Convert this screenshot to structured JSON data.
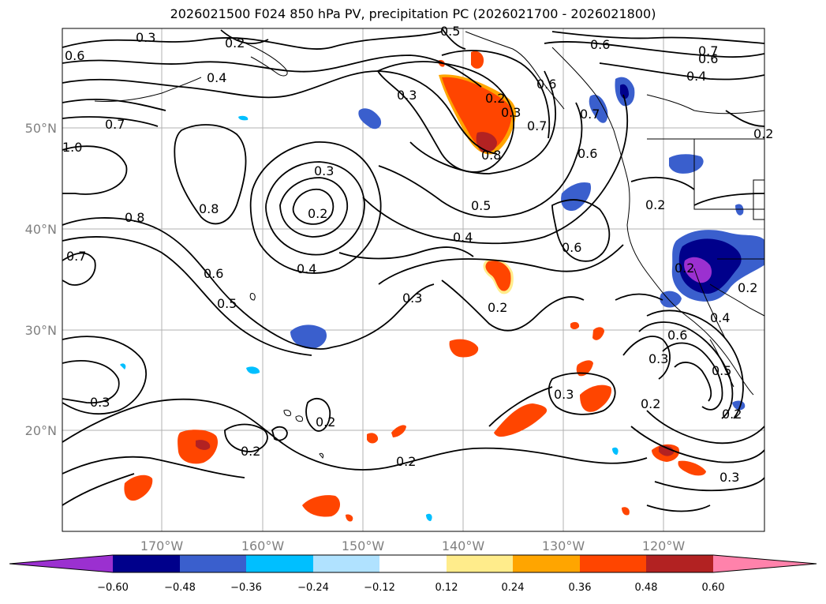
{
  "title": "2026021500 F024 850 hPa PV, precipitation PC (2026021700 - 2026021800)",
  "lon_labels": [
    "170°W",
    "160°W",
    "150°W",
    "140°W",
    "130°W",
    "120°W"
  ],
  "lat_labels": [
    "50°N",
    "40°N",
    "30°N",
    "20°N"
  ],
  "contour_labels": [
    "0.3",
    "0.2",
    "0.5",
    "0.7",
    "0.6",
    "0.4",
    "0.7",
    "1.0",
    "0.8",
    "0.8",
    "0.6",
    "0.5",
    "0.7",
    "0.3",
    "0.2",
    "0.4",
    "0.3",
    "0.2",
    "0.3",
    "0.8",
    "0.6",
    "0.7",
    "0.6",
    "0.5",
    "0.4",
    "0.6",
    "0.2",
    "0.2",
    "0.6",
    "0.3",
    "0.2",
    "0.3",
    "0.2",
    "0.2",
    "0.3",
    "0.2",
    "0.2",
    "0.6",
    "0.4",
    "0.3",
    "0.5",
    "0.2",
    "0.3",
    "0.6",
    "0.7",
    "0.4",
    "0.2",
    "0.2"
  ],
  "colorbar": {
    "ticks": [
      "−0.60",
      "−0.48",
      "−0.36",
      "−0.24",
      "−0.12",
      "0.12",
      "0.24",
      "0.36",
      "0.48",
      "0.60"
    ],
    "colors": [
      "#9b30d0",
      "#00008b",
      "#3a5fcd",
      "#00bfff",
      "#b0e2ff",
      "#ffffff",
      "#ffec8b",
      "#ffa500",
      "#ff4500",
      "#b22222",
      "#ff82ab"
    ]
  },
  "fill_colors": {
    "pos_low": "#ffec8b",
    "pos_mid": "#ffa500",
    "pos_high": "#ff4500",
    "pos_max": "#b22222",
    "neg_low": "#b0e2ff",
    "neg_mid": "#00bfff",
    "neg_high": "#3a5fcd",
    "neg_max": "#00008b",
    "neg_ext": "#9b30d0"
  }
}
